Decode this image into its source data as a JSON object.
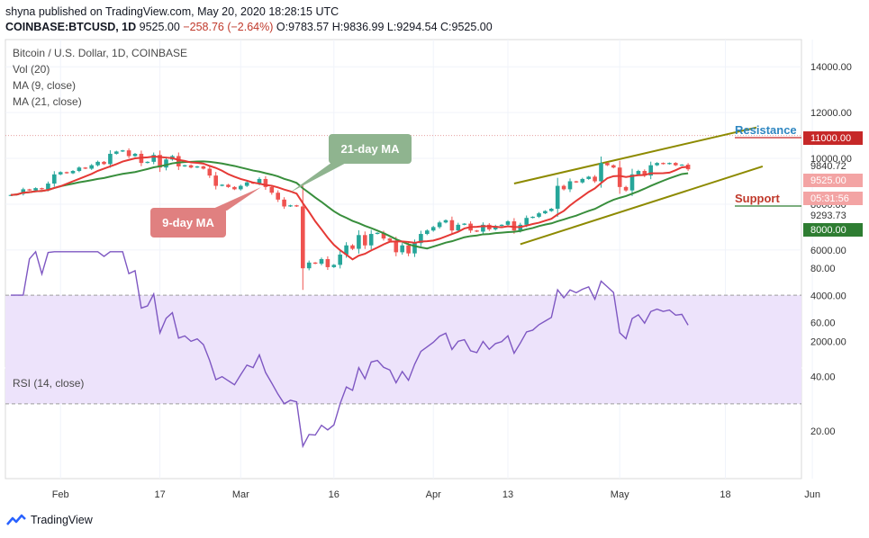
{
  "header": {
    "line1": "shyna published on TradingView.com, May 20, 2020 18:28:15 UTC",
    "symbol": "COINBASE:BTCUSD, 1D",
    "last": "9525.00",
    "change": "−258.76 (−2.64%)",
    "open": "O:9783.57",
    "high": "H:9836.99",
    "low": "L:9294.54",
    "close": "C:9525.00"
  },
  "legend": {
    "title": "Bitcoin / U.S. Dollar, 1D, COINBASE",
    "vol": "Vol (20)",
    "ma9": "MA (9, close)",
    "ma21": "MA (21, close)",
    "rsi": "RSI (14, close)"
  },
  "annotations": {
    "ma21": "21-day MA",
    "ma9": "9-day MA",
    "resistance": "Resistance",
    "support": "Support"
  },
  "price_tags": {
    "resistance_level": "11000.00",
    "high": "9840.72",
    "last": "9525.00",
    "countdown": "05:31:56",
    "low": "9293.73",
    "support_level": "8000.00"
  },
  "footer": {
    "brand": "TradingView"
  },
  "colors": {
    "up": "#26a69a",
    "down": "#ef5350",
    "ma9": "#e53935",
    "ma21": "#388e3c",
    "channel": "#8d8a00",
    "rsi": "#7e57c2",
    "rsi_band": "#ede3fb",
    "resistance_label": "#2e86c1",
    "support_label": "#c0392b",
    "ma21_box": "#8fb48f",
    "ma9_box": "#e08080"
  },
  "chart_data": {
    "type": "candlestick",
    "title": "Bitcoin / U.S. Dollar, 1D, COINBASE",
    "x_ticks": [
      "Feb",
      "17",
      "Mar",
      "16",
      "Apr",
      "13",
      "May",
      "18",
      "Jun"
    ],
    "x_tick_dates": [
      "2020-02-01",
      "2020-02-17",
      "2020-03-01",
      "2020-03-16",
      "2020-04-01",
      "2020-04-13",
      "2020-05-01",
      "2020-05-18",
      "2020-06-01"
    ],
    "price_ticks": [
      2000,
      4000,
      6000,
      8000,
      10000,
      12000,
      14000
    ],
    "price_ylim": [
      1200,
      15000
    ],
    "rsi_ticks": [
      20,
      40,
      60,
      80
    ],
    "rsi_ylim": [
      10,
      88
    ],
    "rsi_band": [
      30,
      70
    ],
    "start_date": "2020-01-24",
    "close": [
      8400,
      8450,
      8650,
      8600,
      8700,
      8650,
      8900,
      9300,
      9400,
      9350,
      9450,
      9600,
      9550,
      9700,
      9850,
      9750,
      10200,
      10300,
      10350,
      10100,
      10200,
      9800,
      9850,
      10150,
      9600,
      9950,
      10100,
      9650,
      9700,
      9600,
      9650,
      9550,
      9250,
      8800,
      8850,
      8750,
      8650,
      8800,
      8950,
      8900,
      9100,
      8750,
      8500,
      8200,
      7900,
      7950,
      7900,
      5200,
      5450,
      5400,
      5600,
      5250,
      5350,
      5800,
      6200,
      6050,
      6650,
      6200,
      6700,
      6750,
      6500,
      6400,
      5900,
      6200,
      5850,
      6300,
      6700,
      6850,
      7000,
      7200,
      7300,
      6850,
      7100,
      7150,
      6850,
      6800,
      7100,
      6900,
      7050,
      7100,
      7250,
      6850,
      7100,
      7400,
      7450,
      7600,
      7700,
      7800,
      8800,
      8650,
      9000,
      8950,
      9100,
      9200,
      9000,
      9800,
      9700,
      9600,
      8750,
      8600,
      9300,
      9450,
      9250,
      9700,
      9800,
      9750,
      9800,
      9700,
      9725,
      9525
    ],
    "series": [
      {
        "name": "MA (9, close)"
      },
      {
        "name": "MA (21, close)"
      }
    ],
    "resistance": 11000,
    "support": 8000,
    "channel_upper": {
      "from": [
        "2020-04-14",
        8900
      ],
      "to": [
        "2020-05-23",
        11350
      ]
    },
    "channel_lower": {
      "from": [
        "2020-04-15",
        6250
      ],
      "to": [
        "2020-05-24",
        9650
      ]
    }
  }
}
